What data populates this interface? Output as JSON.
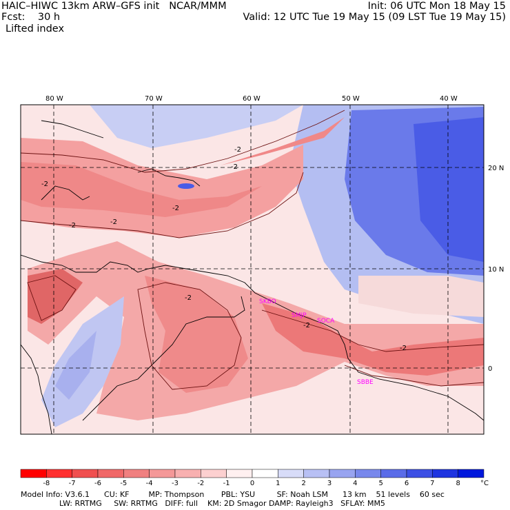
{
  "header": {
    "title_left": "HAIC–HIWC 13km ARW–GFS init   NCAR/MMM",
    "fcst": "Fcst:    30 h",
    "field": "Lifted index",
    "init": "Init: 06 UTC Mon 18 May 15",
    "valid": "Valid: 12 UTC Tue 19 May 15 (09 LST Tue 19 May 15)"
  },
  "map": {
    "lon_labels": [
      "80 W",
      "70 W",
      "60 W",
      "50 W",
      "40 W"
    ],
    "lat_labels": [
      "20 N",
      "10 N",
      "0"
    ],
    "contour_labels": [
      "-2",
      "-2",
      "-2",
      "-2",
      "-2",
      "-2",
      "-2",
      "-2",
      "-2"
    ],
    "stations": [
      "SKBO",
      "SMJP",
      "SOCA",
      "SBBE"
    ],
    "colors": {
      "positive": "#5566ee",
      "negative": "#f08080",
      "neutral": "#f8f0f0"
    }
  },
  "colorbar": {
    "ticks": [
      "-8",
      "-7",
      "-6",
      "-5",
      "-4",
      "-3",
      "-2",
      "-1",
      "0",
      "1",
      "2",
      "3",
      "4",
      "5",
      "6",
      "7",
      "8"
    ],
    "unit": "°C",
    "colors": [
      "#ff0000",
      "#ff3030",
      "#f05050",
      "#f06868",
      "#f08080",
      "#f49898",
      "#f8b0b0",
      "#fcd0d0",
      "#fff0f0",
      "#ffffff",
      "#d8dcf8",
      "#b8c0f4",
      "#98a4f0",
      "#7888ec",
      "#5a6ce8",
      "#3c50e4",
      "#1e34e0",
      "#0018dc"
    ]
  },
  "footer": {
    "line1": "Model Info: V3.6.1      CU: KF        MP: Thompson       PBL: YSU         SF: Noah LSM      13 km    51 levels    60 sec",
    "line2": "                LW: RRTMG     SW: RRTMG   DIFF: full    KM: 2D Smagor DAMP: Rayleigh3   SFLAY: MM5"
  }
}
